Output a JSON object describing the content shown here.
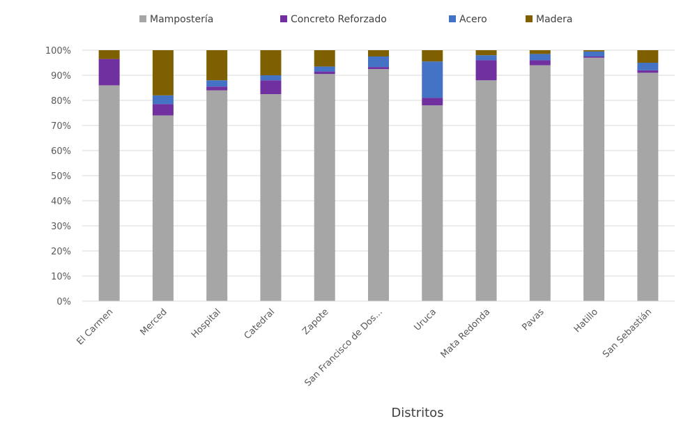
{
  "chart_data": {
    "type": "bar",
    "stacked": true,
    "normalized": true,
    "title": "",
    "xlabel": "Distritos",
    "ylabel": "",
    "ylim": [
      0,
      1
    ],
    "y_ticks": [
      "0%",
      "10%",
      "20%",
      "30%",
      "40%",
      "50%",
      "60%",
      "70%",
      "80%",
      "90%",
      "100%"
    ],
    "grid": "horizontal",
    "legend_position": "top",
    "categories": [
      "El Carmen",
      "Merced",
      "Hospital",
      "Catedral",
      "Zapote",
      "San Francisco de Dos...",
      "Uruca",
      "Mata Redonda",
      "Pavas",
      "Hatillo",
      "San Sebastián"
    ],
    "series": [
      {
        "name": "Mampostería",
        "color": "#a6a6a6",
        "values": [
          0.86,
          0.74,
          0.84,
          0.825,
          0.905,
          0.925,
          0.78,
          0.88,
          0.94,
          0.97,
          0.91
        ]
      },
      {
        "name": "Concreto Reforzado",
        "color": "#7030a0",
        "values": [
          0.105,
          0.045,
          0.015,
          0.055,
          0.01,
          0.008,
          0.03,
          0.08,
          0.02,
          0.005,
          0.01
        ]
      },
      {
        "name": "Acero",
        "color": "#4472c4",
        "values": [
          0.0,
          0.035,
          0.025,
          0.02,
          0.02,
          0.042,
          0.145,
          0.02,
          0.025,
          0.02,
          0.03
        ]
      },
      {
        "name": "Madera",
        "color": "#7f6000",
        "values": [
          0.035,
          0.18,
          0.12,
          0.1,
          0.065,
          0.025,
          0.045,
          0.02,
          0.015,
          0.005,
          0.05
        ]
      }
    ]
  }
}
